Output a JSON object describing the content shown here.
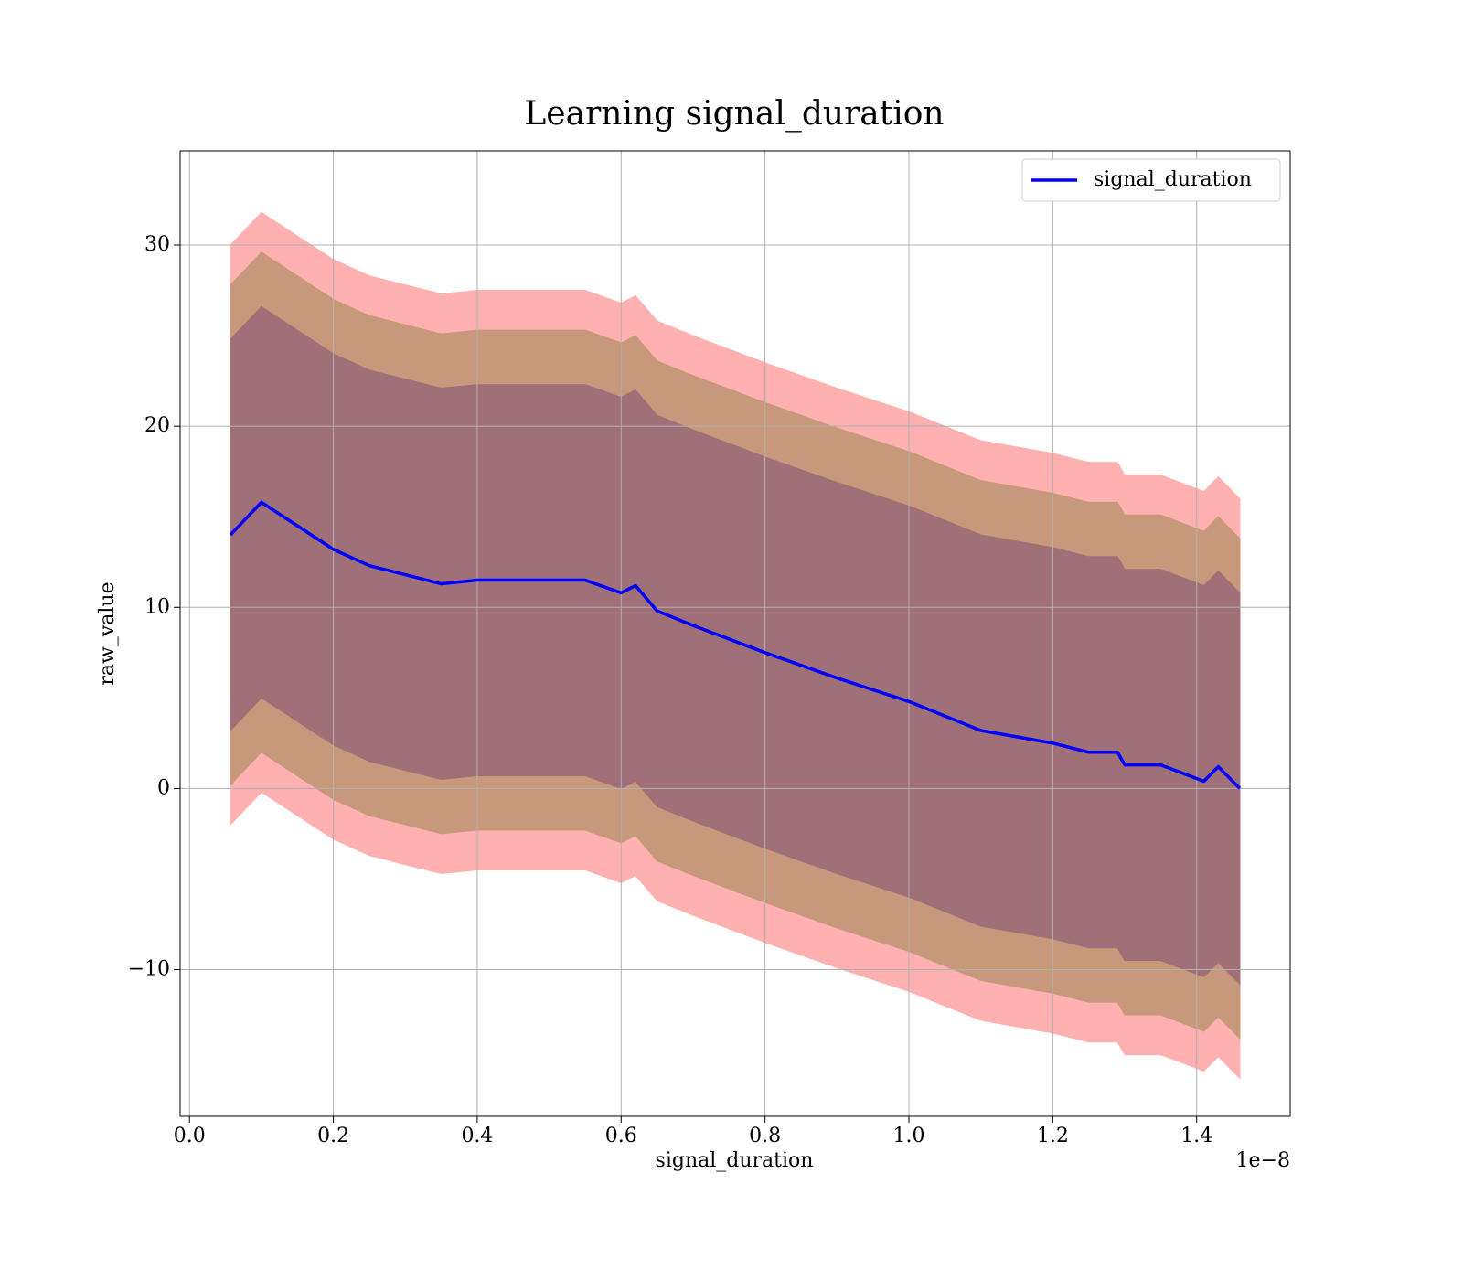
{
  "chart_data": {
    "type": "line",
    "title": "Learning signal_duration",
    "x_label": "signal_duration",
    "y_label": "raw_value",
    "x_offset_label": "1e−8",
    "x": [
      5.7e-10,
      1e-09,
      1.5e-09,
      2e-09,
      2.5e-09,
      3e-09,
      3.5e-09,
      4e-09,
      5e-09,
      5.5e-09,
      6e-09,
      6.2e-09,
      6.5e-09,
      7e-09,
      8e-09,
      9e-09,
      1e-08,
      1.1e-08,
      1.2e-08,
      1.25e-08,
      1.29e-08,
      1.3e-08,
      1.35e-08,
      1.41e-08,
      1.43e-08,
      1.46e-08
    ],
    "series": [
      {
        "name": "signal_duration",
        "color": "#0000ff",
        "values": [
          14.0,
          15.8,
          14.5,
          13.2,
          12.3,
          11.8,
          11.3,
          11.5,
          11.5,
          11.5,
          10.8,
          11.2,
          9.8,
          9.0,
          7.5,
          6.1,
          4.8,
          3.2,
          2.5,
          2.0,
          2.0,
          1.3,
          1.3,
          0.4,
          1.2,
          0.0
        ]
      }
    ],
    "bands": [
      {
        "color": "#ffb0b0",
        "upper": [
          30.0,
          31.8,
          30.5,
          29.2,
          28.3,
          27.8,
          27.3,
          27.5,
          27.5,
          27.5,
          26.8,
          27.2,
          25.8,
          25.0,
          23.5,
          22.1,
          20.8,
          19.2,
          18.5,
          18.0,
          18.0,
          17.3,
          17.3,
          16.4,
          17.2,
          16.0
        ],
        "lower": [
          -2.0,
          -0.2,
          -1.5,
          -2.8,
          -3.7,
          -4.2,
          -4.7,
          -4.5,
          -4.5,
          -4.5,
          -5.2,
          -4.8,
          -6.2,
          -7.0,
          -8.5,
          -9.9,
          -11.2,
          -12.8,
          -13.5,
          -14.0,
          -14.0,
          -14.7,
          -14.7,
          -15.6,
          -14.8,
          -16.0
        ]
      },
      {
        "color": "#c8987a",
        "upper": [
          27.8,
          29.6,
          28.3,
          27.0,
          26.1,
          25.6,
          25.1,
          25.3,
          25.3,
          25.3,
          24.6,
          25.0,
          23.6,
          22.8,
          21.3,
          19.9,
          18.6,
          17.0,
          16.3,
          15.8,
          15.8,
          15.1,
          15.1,
          14.2,
          15.0,
          13.8
        ],
        "lower": [
          0.2,
          2.0,
          0.7,
          -0.6,
          -1.5,
          -2.0,
          -2.5,
          -2.3,
          -2.3,
          -2.3,
          -3.0,
          -2.6,
          -4.0,
          -4.8,
          -6.3,
          -7.7,
          -9.0,
          -10.6,
          -11.3,
          -11.8,
          -11.8,
          -12.5,
          -12.5,
          -13.4,
          -12.6,
          -13.8
        ]
      },
      {
        "color": "#a07078",
        "upper": [
          24.8,
          26.6,
          25.3,
          24.0,
          23.1,
          22.6,
          22.1,
          22.3,
          22.3,
          22.3,
          21.6,
          22.0,
          20.6,
          19.8,
          18.3,
          16.9,
          15.6,
          14.0,
          13.3,
          12.8,
          12.8,
          12.1,
          12.1,
          11.2,
          12.0,
          10.8
        ],
        "lower": [
          3.2,
          5.0,
          3.7,
          2.4,
          1.5,
          1.0,
          0.5,
          0.7,
          0.7,
          0.7,
          0.0,
          0.4,
          -1.0,
          -1.8,
          -3.3,
          -4.7,
          -6.0,
          -7.6,
          -8.3,
          -8.8,
          -8.8,
          -9.5,
          -9.5,
          -10.4,
          -9.6,
          -10.8
        ]
      }
    ],
    "xlim": [
      -1.3e-10,
      1.53e-08
    ],
    "ylim": [
      -18.1,
      35.2
    ],
    "xticks": [
      {
        "value": 0,
        "label": "0.0"
      },
      {
        "value": 2e-09,
        "label": "0.2"
      },
      {
        "value": 4e-09,
        "label": "0.4"
      },
      {
        "value": 6e-09,
        "label": "0.6"
      },
      {
        "value": 8e-09,
        "label": "0.8"
      },
      {
        "value": 1e-08,
        "label": "1.0"
      },
      {
        "value": 1.2e-08,
        "label": "1.2"
      },
      {
        "value": 1.4e-08,
        "label": "1.4"
      }
    ],
    "yticks": [
      {
        "value": -10,
        "label": "−10"
      },
      0,
      10,
      20,
      30
    ],
    "grid": true,
    "legend": "upper right"
  }
}
